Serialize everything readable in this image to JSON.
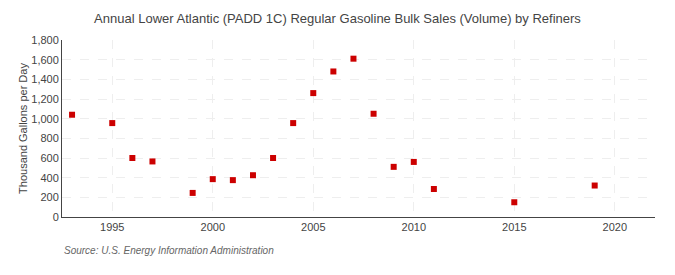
{
  "chart_data": {
    "type": "scatter",
    "title": "Annual Lower Atlantic (PADD 1C) Regular Gasoline Bulk Sales (Volume) by Refiners",
    "ylabel": "Thousand Gallons per Day",
    "annotations": [
      "Source: U.S. Energy Information Administration"
    ],
    "x": [
      1993,
      1995,
      1996,
      1997,
      1999,
      2000,
      2001,
      2002,
      2003,
      2004,
      2005,
      2006,
      2007,
      2008,
      2009,
      2010,
      2011,
      2015,
      2019
    ],
    "values": [
      1040,
      955,
      600,
      565,
      245,
      385,
      375,
      425,
      600,
      955,
      1260,
      1480,
      1610,
      1050,
      510,
      560,
      285,
      150,
      320
    ],
    "color": "#cc0000",
    "marker": "square",
    "xlim": [
      1992.5,
      2022
    ],
    "xticks": [
      1995,
      2000,
      2005,
      2010,
      2015,
      2020
    ],
    "ylim": [
      0,
      1800
    ],
    "yticks": [
      0,
      200,
      400,
      600,
      800,
      {
        "value": 1000,
        "label": "1,000"
      },
      {
        "value": 1200,
        "label": "1,200"
      },
      {
        "value": 1400,
        "label": "1,400"
      },
      {
        "value": 1600,
        "label": "1,600"
      },
      {
        "value": 1800,
        "label": "1,800"
      }
    ],
    "grid": true
  }
}
